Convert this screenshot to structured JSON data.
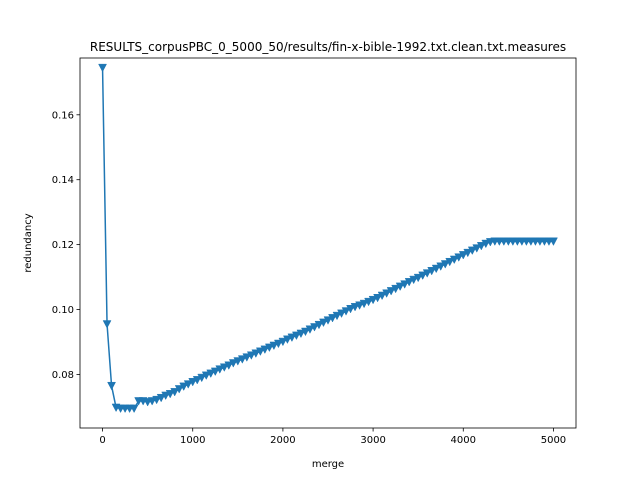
{
  "chart_data": {
    "type": "line",
    "title": "RESULTS_corpusPBC_0_5000_50/results/fin-x-bible-1992.txt.clean.txt.measures",
    "xlabel": "merge",
    "ylabel": "redundancy",
    "xlim": [
      -250,
      5250
    ],
    "ylim": [
      0.0635,
      0.1775
    ],
    "xticks": [
      0,
      1000,
      2000,
      3000,
      4000,
      5000
    ],
    "yticks": [
      0.08,
      0.1,
      0.12,
      0.14,
      0.16
    ],
    "xtick_labels": [
      "0",
      "1000",
      "2000",
      "3000",
      "4000",
      "5000"
    ],
    "ytick_labels": [
      "0.08",
      "0.10",
      "0.12",
      "0.14",
      "0.16"
    ],
    "grid": false,
    "legend": "none",
    "series": [
      {
        "color": "#1f77b4",
        "marker": "triangle-down",
        "x": [
          0,
          50,
          100,
          150,
          200,
          250,
          300,
          350,
          400,
          450,
          500,
          550,
          600,
          650,
          700,
          750,
          800,
          850,
          900,
          950,
          1000,
          1050,
          1100,
          1150,
          1200,
          1250,
          1300,
          1350,
          1400,
          1450,
          1500,
          1550,
          1600,
          1650,
          1700,
          1750,
          1800,
          1850,
          1900,
          1950,
          2000,
          2050,
          2100,
          2150,
          2200,
          2250,
          2300,
          2350,
          2400,
          2450,
          2500,
          2550,
          2600,
          2650,
          2700,
          2750,
          2800,
          2850,
          2900,
          2950,
          3000,
          3050,
          3100,
          3150,
          3200,
          3250,
          3300,
          3350,
          3400,
          3450,
          3500,
          3550,
          3600,
          3650,
          3700,
          3750,
          3800,
          3850,
          3900,
          3950,
          4000,
          4050,
          4100,
          4150,
          4200,
          4250,
          4300,
          4350,
          4400,
          4450,
          4500,
          4550,
          4600,
          4650,
          4700,
          4750,
          4800,
          4850,
          4900,
          4950,
          5000
        ],
        "y": [
          0.1745,
          0.0955,
          0.0765,
          0.0698,
          0.0695,
          0.0695,
          0.0695,
          0.0695,
          0.0718,
          0.0718,
          0.0715,
          0.0718,
          0.0722,
          0.0728,
          0.0735,
          0.074,
          0.0746,
          0.0755,
          0.0763,
          0.077,
          0.0777,
          0.0783,
          0.079,
          0.0797,
          0.0803,
          0.0809,
          0.0816,
          0.0822,
          0.0828,
          0.0835,
          0.0841,
          0.0847,
          0.0853,
          0.0859,
          0.0865,
          0.0871,
          0.0877,
          0.0883,
          0.0889,
          0.0895,
          0.0901,
          0.0908,
          0.0914,
          0.092,
          0.0926,
          0.0932,
          0.0939,
          0.0946,
          0.0953,
          0.096,
          0.0967,
          0.0974,
          0.0981,
          0.0988,
          0.0995,
          0.1002,
          0.1008,
          0.1013,
          0.1018,
          0.1024,
          0.103,
          0.1036,
          0.1043,
          0.105,
          0.1057,
          0.1064,
          0.1071,
          0.1078,
          0.1085,
          0.1092,
          0.1098,
          0.1105,
          0.1112,
          0.1119,
          0.1126,
          0.1133,
          0.114,
          0.1147,
          0.1154,
          0.1161,
          0.1168,
          0.1175,
          0.1182,
          0.1189,
          0.1196,
          0.1203,
          0.1208,
          0.121,
          0.121,
          0.121,
          0.121,
          0.121,
          0.121,
          0.121,
          0.121,
          0.121,
          0.121,
          0.121,
          0.121,
          0.121,
          0.121
        ]
      }
    ]
  }
}
